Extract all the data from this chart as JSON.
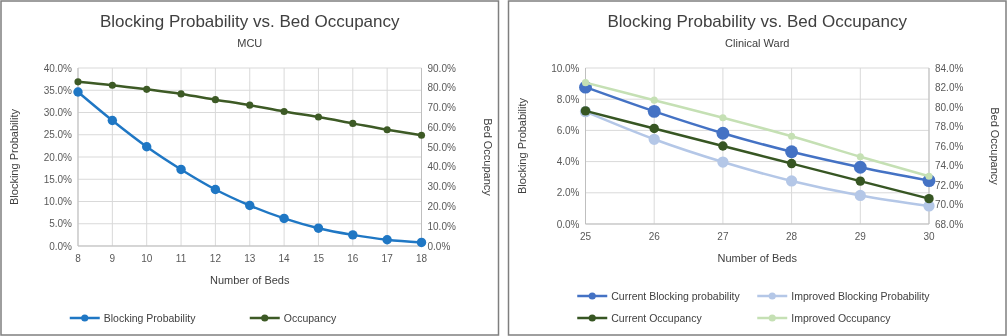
{
  "chart_data": [
    {
      "type": "line",
      "title": "Blocking Probability vs. Bed Occupancy",
      "subtitle": "MCU",
      "xlabel": "Number of Beds",
      "ylabel": "Blocking Probability",
      "y2label": "Bed Occupancy",
      "x": [
        8,
        9,
        10,
        11,
        12,
        13,
        14,
        15,
        16,
        17,
        18
      ],
      "series": [
        {
          "name": "Blocking Probability",
          "color": "#1f77c4",
          "values": [
            34.6,
            28.2,
            22.3,
            17.2,
            12.7,
            9.1,
            6.2,
            4.0,
            2.5,
            1.4,
            0.8
          ]
        },
        {
          "name": "Occupancy",
          "color": "#3d5a25",
          "axis": "y2",
          "values": [
            83.0,
            81.3,
            79.2,
            76.9,
            74.0,
            71.2,
            68.0,
            65.2,
            62.0,
            58.8,
            56.0
          ]
        }
      ],
      "xlim": [
        8,
        18
      ],
      "xticks": [
        8,
        9,
        10,
        11,
        12,
        13,
        14,
        15,
        16,
        17,
        18
      ],
      "ylim": [
        0,
        40
      ],
      "yticks": [
        {
          "value": 0,
          "label": "0.0%"
        },
        {
          "value": 5,
          "label": "5.0%"
        },
        {
          "value": 10,
          "label": "10.0%"
        },
        {
          "value": 15,
          "label": "15.0%"
        },
        {
          "value": 20,
          "label": "20.0%"
        },
        {
          "value": 25,
          "label": "25.0%"
        },
        {
          "value": 30,
          "label": "30.0%"
        },
        {
          "value": 35,
          "label": "35.0%"
        },
        {
          "value": 40,
          "label": "40.0%"
        }
      ],
      "y2lim": [
        0,
        90
      ],
      "y2ticks": [
        {
          "value": 0,
          "label": "0.0%"
        },
        {
          "value": 10,
          "label": "10.0%"
        },
        {
          "value": 20,
          "label": "20.0%"
        },
        {
          "value": 30,
          "label": "30.0%"
        },
        {
          "value": 40,
          "label": "40.0%"
        },
        {
          "value": 50,
          "label": "50.0%"
        },
        {
          "value": 60,
          "label": "60.0%"
        },
        {
          "value": 70,
          "label": "70.0%"
        },
        {
          "value": 80,
          "label": "80.0%"
        },
        {
          "value": 90,
          "label": "90.0%"
        }
      ],
      "grid": true,
      "legend": "bottom",
      "marker": "circle"
    },
    {
      "type": "line",
      "title": "Blocking Probability vs. Bed Occupancy",
      "subtitle": "Clinical Ward",
      "xlabel": "Number of Beds",
      "ylabel": "Blocking Probability",
      "y2label": "Bed Occupancy",
      "x": [
        25,
        26,
        27,
        28,
        29,
        30
      ],
      "series": [
        {
          "name": "Current Blocking probability",
          "color": "#4472c4",
          "values": [
            8.77,
            7.22,
            5.82,
            4.63,
            3.64,
            2.78
          ]
        },
        {
          "name": "Improved Blocking Probability",
          "color": "#b4c7e7",
          "values": [
            7.2,
            5.43,
            3.97,
            2.76,
            1.83,
            1.16
          ]
        },
        {
          "name": "Current Occupancy",
          "color": "#375623",
          "axis": "y2",
          "values": [
            79.6,
            77.8,
            76.0,
            74.2,
            72.4,
            70.6
          ]
        },
        {
          "name": "Improved Occupancy",
          "color": "#c5e0b4",
          "axis": "y2",
          "values": [
            82.5,
            80.7,
            78.9,
            77.0,
            74.9,
            72.9
          ]
        }
      ],
      "xlim": [
        25,
        30
      ],
      "xticks": [
        25,
        26,
        27,
        28,
        29,
        30
      ],
      "ylim": [
        0,
        10
      ],
      "yticks": [
        {
          "value": 0,
          "label": "0.0%"
        },
        {
          "value": 2,
          "label": "2.0%"
        },
        {
          "value": 4,
          "label": "4.0%"
        },
        {
          "value": 6,
          "label": "6.0%"
        },
        {
          "value": 8,
          "label": "8.0%"
        },
        {
          "value": 10,
          "label": "10.0%"
        }
      ],
      "y2lim": [
        68,
        84
      ],
      "y2ticks": [
        {
          "value": 68,
          "label": "68.0%"
        },
        {
          "value": 70,
          "label": "70.0%"
        },
        {
          "value": 72,
          "label": "72.0%"
        },
        {
          "value": 74,
          "label": "74.0%"
        },
        {
          "value": 76,
          "label": "76.0%"
        },
        {
          "value": 78,
          "label": "78.0%"
        },
        {
          "value": 80,
          "label": "80.0%"
        },
        {
          "value": 82,
          "label": "82.0%"
        },
        {
          "value": 84,
          "label": "84.0%"
        }
      ],
      "grid": true,
      "legend": "bottom",
      "marker": "circle"
    }
  ]
}
